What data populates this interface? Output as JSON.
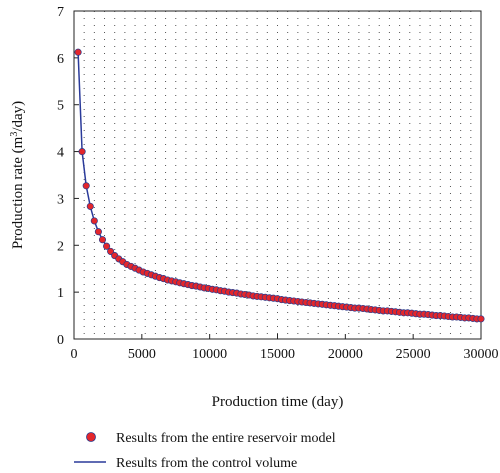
{
  "chart_data": {
    "type": "scatter",
    "xlabel": "Production time (day)",
    "ylabel_main": "Production rate (m",
    "ylabel_sup": "3",
    "ylabel_tail": "/day)",
    "xlim": [
      0,
      30000
    ],
    "ylim": [
      0,
      7
    ],
    "xticks": [
      0,
      5000,
      10000,
      15000,
      20000,
      25000,
      30000
    ],
    "yticks": [
      0,
      1,
      2,
      3,
      4,
      5,
      6,
      7
    ],
    "grid": "dotted",
    "legend_position": "bottom",
    "colors": {
      "marker_fill": "#e3262b",
      "marker_edge": "#2a3a8c",
      "line": "#2a3a9a",
      "grid": "#555555"
    },
    "series": [
      {
        "name": "Results from the entire reservoir model",
        "kind": "markers",
        "x": [
          300,
          600,
          900,
          1200,
          1500,
          1800,
          2100,
          2400,
          2700,
          3000,
          3300,
          3600,
          3900,
          4200,
          4500,
          4800,
          5100,
          5400,
          5700,
          6000,
          6300,
          6600,
          6900,
          7200,
          7500,
          7800,
          8100,
          8400,
          8700,
          9000,
          9300,
          9600,
          9900,
          10200,
          10500,
          10800,
          11100,
          11400,
          11700,
          12000,
          12300,
          12600,
          12900,
          13200,
          13500,
          13800,
          14100,
          14400,
          14700,
          15000,
          15300,
          15600,
          15900,
          16200,
          16500,
          16800,
          17100,
          17400,
          17700,
          18000,
          18300,
          18600,
          18900,
          19200,
          19500,
          19800,
          20100,
          20400,
          20700,
          21000,
          21300,
          21600,
          21900,
          22200,
          22500,
          22800,
          23100,
          23400,
          23700,
          24000,
          24300,
          24600,
          24900,
          25200,
          25500,
          25800,
          26100,
          26400,
          26700,
          27000,
          27300,
          27600,
          27900,
          28200,
          28500,
          28800,
          29100,
          29400,
          29700,
          30000
        ],
        "y": [
          6.12,
          4.0,
          3.27,
          2.83,
          2.52,
          2.29,
          2.12,
          1.98,
          1.87,
          1.78,
          1.71,
          1.65,
          1.59,
          1.55,
          1.51,
          1.47,
          1.43,
          1.4,
          1.37,
          1.34,
          1.31,
          1.29,
          1.26,
          1.24,
          1.22,
          1.2,
          1.18,
          1.16,
          1.14,
          1.13,
          1.11,
          1.09,
          1.08,
          1.06,
          1.05,
          1.03,
          1.02,
          1.0,
          0.99,
          0.98,
          0.96,
          0.95,
          0.94,
          0.92,
          0.91,
          0.9,
          0.89,
          0.88,
          0.87,
          0.86,
          0.84,
          0.83,
          0.82,
          0.81,
          0.8,
          0.79,
          0.78,
          0.77,
          0.76,
          0.75,
          0.74,
          0.73,
          0.72,
          0.71,
          0.7,
          0.69,
          0.68,
          0.67,
          0.66,
          0.66,
          0.65,
          0.64,
          0.63,
          0.62,
          0.61,
          0.6,
          0.6,
          0.59,
          0.58,
          0.57,
          0.56,
          0.56,
          0.55,
          0.54,
          0.53,
          0.53,
          0.52,
          0.51,
          0.5,
          0.5,
          0.49,
          0.48,
          0.47,
          0.47,
          0.46,
          0.45,
          0.45,
          0.44,
          0.43,
          0.43
        ]
      },
      {
        "name": "Results from the control volume",
        "kind": "line",
        "x": [
          300,
          600,
          900,
          1200,
          1500,
          1800,
          2100,
          2400,
          2700,
          3000,
          3300,
          3600,
          3900,
          4200,
          4500,
          4800,
          5100,
          5400,
          5700,
          6000,
          6300,
          6600,
          6900,
          7200,
          7500,
          7800,
          8100,
          8400,
          8700,
          9000,
          9300,
          9600,
          9900,
          10200,
          10500,
          10800,
          11100,
          11400,
          11700,
          12000,
          12300,
          12600,
          12900,
          13200,
          13500,
          13800,
          14100,
          14400,
          14700,
          15000,
          15300,
          15600,
          15900,
          16200,
          16500,
          16800,
          17100,
          17400,
          17700,
          18000,
          18300,
          18600,
          18900,
          19200,
          19500,
          19800,
          20100,
          20400,
          20700,
          21000,
          21300,
          21600,
          21900,
          22200,
          22500,
          22800,
          23100,
          23400,
          23700,
          24000,
          24300,
          24600,
          24900,
          25200,
          25500,
          25800,
          26100,
          26400,
          26700,
          27000,
          27300,
          27600,
          27900,
          28200,
          28500,
          28800,
          29100,
          29400,
          29700,
          30000
        ],
        "y": [
          6.12,
          4.0,
          3.27,
          2.83,
          2.52,
          2.29,
          2.12,
          1.98,
          1.87,
          1.78,
          1.71,
          1.65,
          1.59,
          1.55,
          1.51,
          1.47,
          1.43,
          1.4,
          1.37,
          1.34,
          1.31,
          1.29,
          1.26,
          1.24,
          1.22,
          1.2,
          1.18,
          1.16,
          1.14,
          1.13,
          1.11,
          1.09,
          1.08,
          1.06,
          1.05,
          1.03,
          1.02,
          1.0,
          0.99,
          0.98,
          0.96,
          0.95,
          0.94,
          0.92,
          0.91,
          0.9,
          0.89,
          0.88,
          0.87,
          0.86,
          0.84,
          0.83,
          0.82,
          0.81,
          0.8,
          0.79,
          0.78,
          0.77,
          0.76,
          0.75,
          0.74,
          0.73,
          0.72,
          0.71,
          0.7,
          0.69,
          0.68,
          0.67,
          0.66,
          0.66,
          0.65,
          0.64,
          0.63,
          0.62,
          0.61,
          0.6,
          0.6,
          0.59,
          0.58,
          0.57,
          0.56,
          0.56,
          0.55,
          0.54,
          0.53,
          0.53,
          0.52,
          0.51,
          0.5,
          0.5,
          0.49,
          0.48,
          0.47,
          0.47,
          0.46,
          0.45,
          0.45,
          0.44,
          0.43,
          0.43
        ]
      }
    ]
  }
}
